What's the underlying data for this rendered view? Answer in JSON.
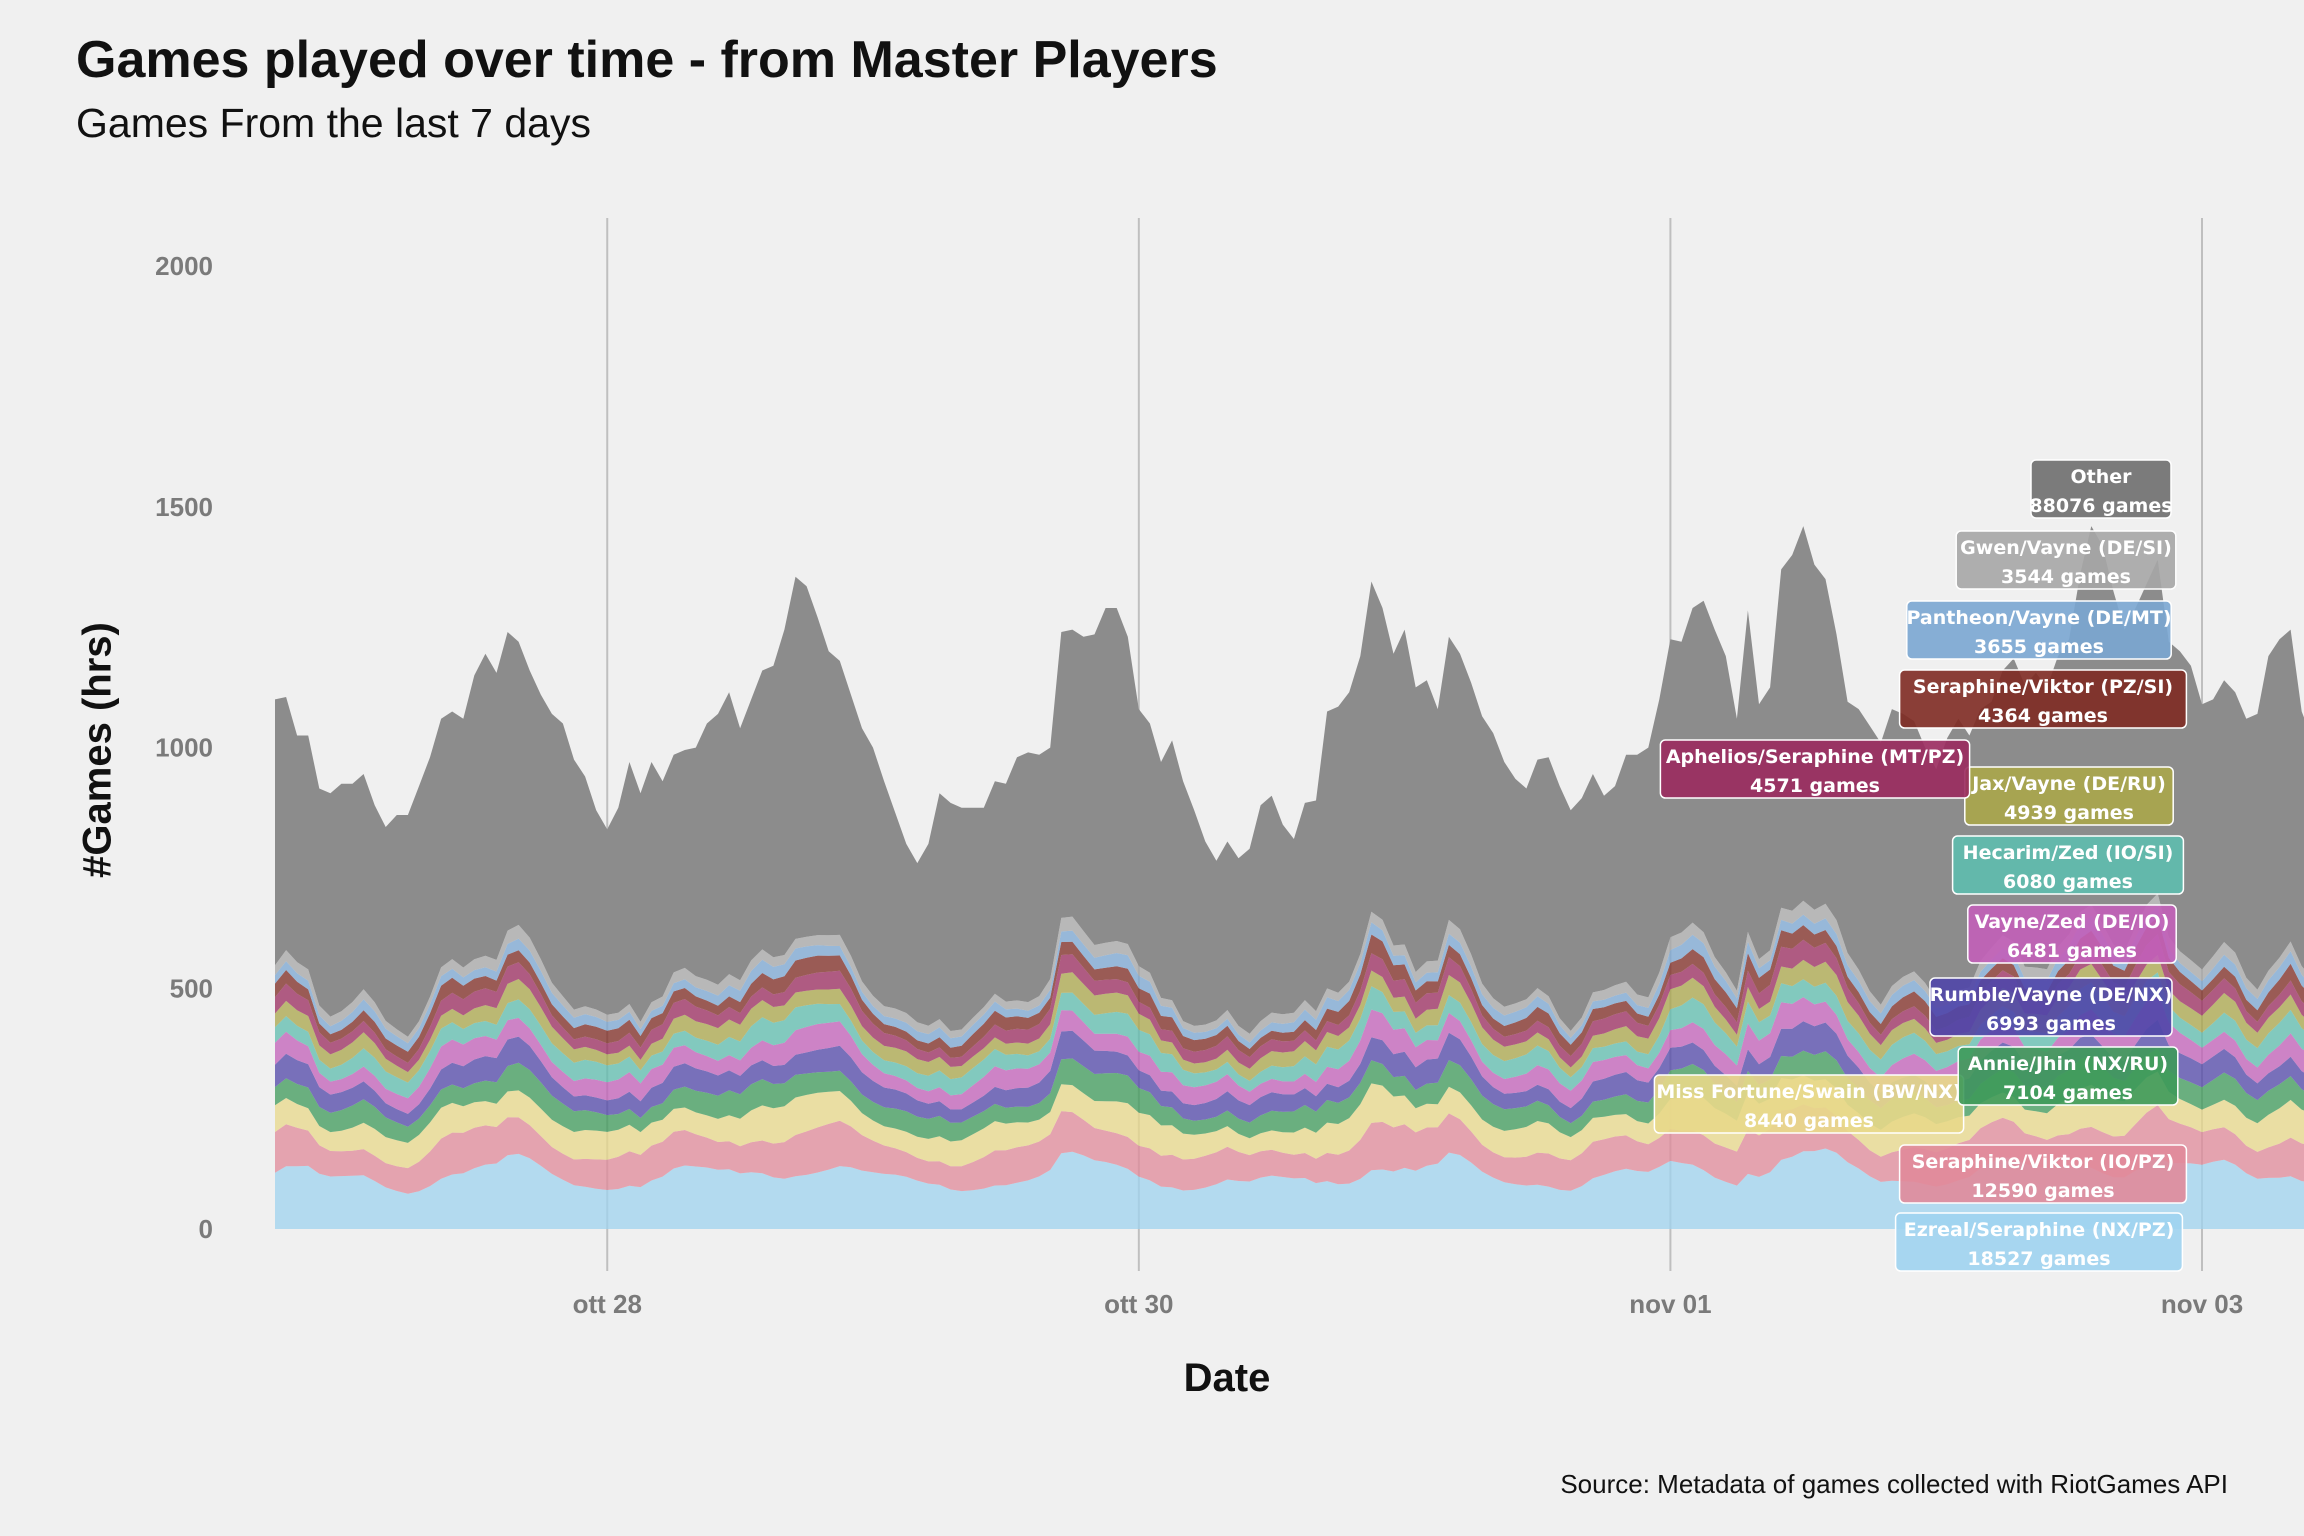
{
  "header": {
    "title": "Games played over time - from Master Players",
    "subtitle": "Games From the last 7 days"
  },
  "caption": "Source: Metadata of games collected with RiotGames API",
  "colors": {
    "background": "#f0f0f0",
    "grid": "#bfbfbf"
  },
  "chart_data": {
    "type": "area",
    "stacked": true,
    "title": "Games played over time - from Master Players",
    "subtitle": "Games From the last 7 days",
    "xlabel": "Date",
    "ylabel": "#Games (hrs)",
    "ylim": [
      0,
      2100
    ],
    "xlim": [
      "2021-10-26T18:00",
      "2021-11-03T00:00"
    ],
    "x_ticks": [
      {
        "date": "2021-10-28T00:00",
        "label": "ott 28"
      },
      {
        "date": "2021-10-30T00:00",
        "label": "ott 30"
      },
      {
        "date": "2021-11-01T00:00",
        "label": "nov 01"
      },
      {
        "date": "2021-11-03T00:00",
        "label": "nov 03"
      }
    ],
    "y_ticks": [
      0,
      500,
      1000,
      1500,
      2000
    ],
    "grid": "vertical major only",
    "legend": "direct labels at right end of each series",
    "x_start": "2021-10-26T18:00",
    "x_step_hours": 1,
    "total": [
      1100,
      1105,
      1025,
      1025,
      915,
      905,
      925,
      925,
      945,
      880,
      835,
      860,
      860,
      920,
      980,
      1060,
      1075,
      1060,
      1150,
      1195,
      1155,
      1240,
      1220,
      1160,
      1110,
      1070,
      1050,
      975,
      940,
      870,
      830,
      875,
      970,
      905,
      970,
      930,
      985,
      995,
      1000,
      1050,
      1070,
      1115,
      1040,
      1100,
      1160,
      1170,
      1245,
      1355,
      1335,
      1270,
      1200,
      1180,
      1110,
      1040,
      1000,
      930,
      865,
      800,
      760,
      800,
      905,
      885,
      875,
      875,
      875,
      930,
      925,
      980,
      990,
      985,
      1000,
      1240,
      1245,
      1230,
      1235,
      1290,
      1290,
      1230,
      1080,
      1050,
      970,
      1015,
      930,
      870,
      805,
      765,
      805,
      770,
      790,
      880,
      900,
      840,
      810,
      885,
      890,
      1075,
      1085,
      1115,
      1190,
      1345,
      1290,
      1195,
      1245,
      1125,
      1140,
      1080,
      1230,
      1195,
      1135,
      1065,
      1030,
      970,
      935,
      915,
      975,
      980,
      920,
      870,
      895,
      945,
      900,
      920,
      985,
      985,
      1000,
      1100,
      1225,
      1220,
      1290,
      1305,
      1245,
      1190,
      1060,
      1285,
      1090,
      1125,
      1370,
      1400,
      1460,
      1380,
      1350,
      1235,
      1095,
      1080,
      1045,
      1010,
      1080,
      1070,
      1055,
      1000,
      955,
      1020,
      1060,
      1025,
      1080,
      1095,
      1160,
      1185,
      1130,
      1155,
      1125,
      1190,
      1225,
      1360,
      1460,
      1420,
      1325,
      1245,
      1290,
      1340,
      1390,
      1220,
      1200,
      1170,
      1090,
      1100,
      1140,
      1115,
      1060,
      1070,
      1190,
      1225,
      1245,
      1075,
      1015,
      890,
      925,
      840,
      770
    ],
    "series": [
      {
        "name": "Ezreal/Seraphine (NX/PZ)",
        "label": "Ezreal/Seraphine (NX/PZ)",
        "total_label": "18527 games",
        "color": "#9fd3ef",
        "share": 0.22
      },
      {
        "name": "Seraphine/Viktor (IO/PZ)",
        "label": "Seraphine/Viktor (IO/PZ)",
        "total_label": "12590 games",
        "color": "#e08a9a",
        "share": 0.135
      },
      {
        "name": "Miss Fortune/Swain (BW/NX)",
        "label": "Miss Fortune/Swain (BW/NX)",
        "total_label": "8440 games",
        "color": "#e8d88a",
        "share": 0.11
      },
      {
        "name": "Annie/Jhin (NX/RU)",
        "label": "Annie/Jhin (NX/RU)",
        "total_label": "7104 games",
        "color": "#3e9a5a",
        "share": 0.085
      },
      {
        "name": "Rumble/Vayne (DE/NX)",
        "label": "Rumble/Vayne (DE/NX)",
        "total_label": "6993 games",
        "color": "#5046a8",
        "share": 0.08
      },
      {
        "name": "Vayne/Zed (DE/IO)",
        "label": "Vayne/Zed (DE/IO)",
        "total_label": "6481 games",
        "color": "#c25fb8",
        "share": 0.075
      },
      {
        "name": "Hecarim/Zed (IO/SI)",
        "label": "Hecarim/Zed (IO/SI)",
        "total_label": "6080 games",
        "color": "#5ebcae",
        "share": 0.07
      },
      {
        "name": "Jax/Vayne (DE/RU)",
        "label": "Jax/Vayne (DE/RU)",
        "total_label": "4939 games",
        "color": "#aaa64a",
        "share": 0.06
      },
      {
        "name": "Aphelios/Seraphine (MT/PZ)",
        "label": "Aphelios/Seraphine (MT/PZ)",
        "total_label": "4571 games",
        "color": "#9a2a5e",
        "share": 0.055
      },
      {
        "name": "Seraphine/Viktor (PZ/SI)",
        "label": "Seraphine/Viktor (PZ/SI)",
        "total_label": "4364 games",
        "color": "#7e2a22",
        "share": 0.05
      },
      {
        "name": "Pantheon/Vayne (DE/MT)",
        "label": "Pantheon/Vayne (DE/MT)",
        "total_label": "3655 games",
        "color": "#7aa6d2",
        "share": 0.04
      },
      {
        "name": "Gwen/Vayne (DE/SI)",
        "label": "Gwen/Vayne (DE/SI)",
        "total_label": "3544 games",
        "color": "#a6a6a6",
        "share": 0.04
      },
      {
        "name": "Other",
        "label": "Other",
        "total_label": "88076 games",
        "color": "#6e6e6e",
        "share": null
      }
    ],
    "other_fraction_profile": "other = total - colored band (colored band top ≈ 540 avg, peaks ~710)"
  }
}
